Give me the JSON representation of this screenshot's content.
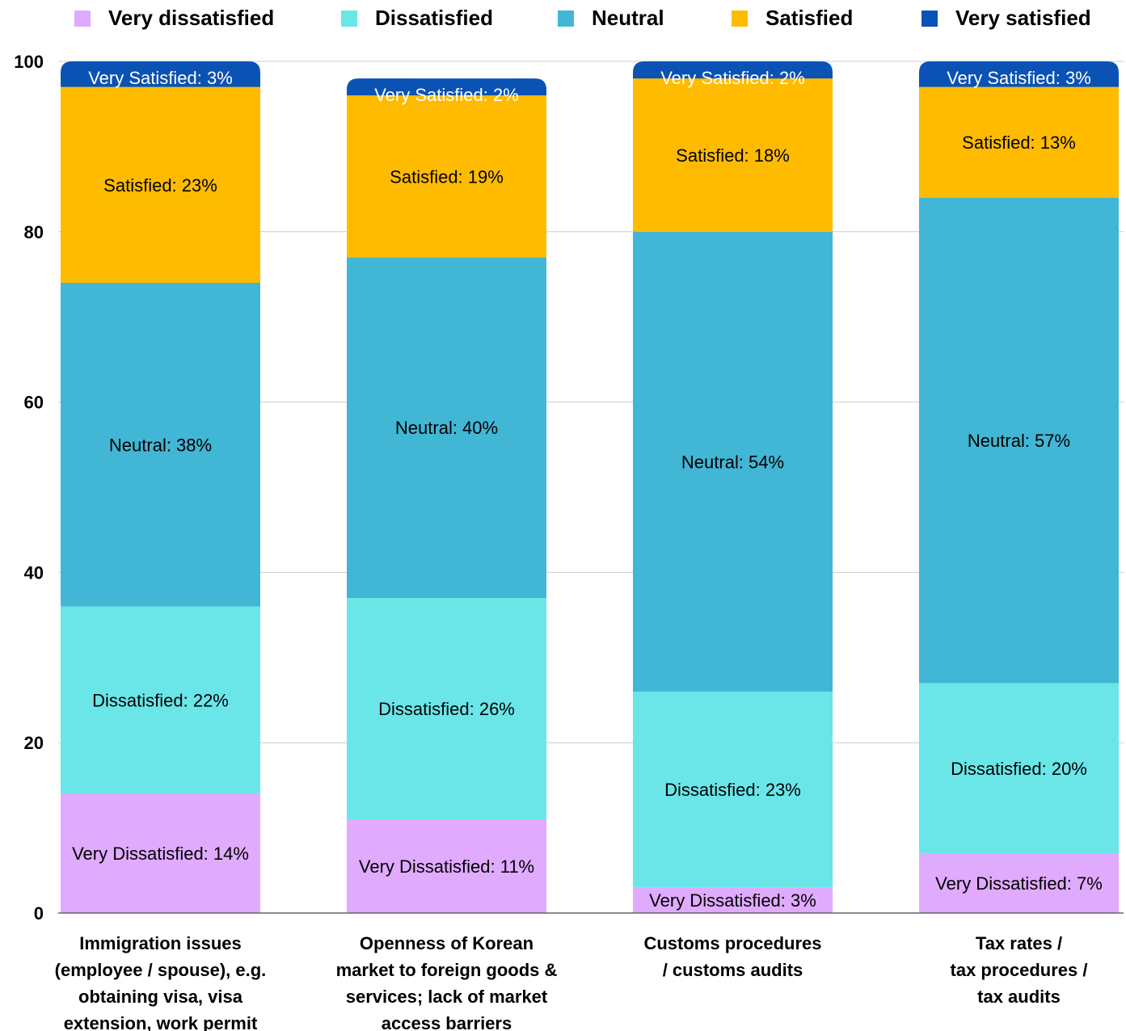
{
  "chart_data": {
    "type": "bar",
    "stacked": true,
    "categories": [
      [
        "Immigration issues",
        "(employee / spouse), e.g.",
        "obtaining visa, visa",
        "extension, work permit"
      ],
      [
        "Openness of Korean",
        "market to foreign goods &",
        "services; lack of market",
        "access barriers"
      ],
      [
        "Customs procedures",
        "/ customs audits"
      ],
      [
        "Tax rates /",
        "tax procedures /",
        "tax audits"
      ]
    ],
    "series": [
      {
        "name": "Very dissatisfied",
        "color": "#e0aaff",
        "values": [
          14,
          11,
          3,
          7
        ],
        "labels": [
          "Very Dissatisfied: 14%",
          "Very Dissatisfied: 11%",
          "Very Dissatisfied: 3%",
          "Very Dissatisfied: 7%"
        ]
      },
      {
        "name": "Dissatisfied",
        "color": "#6ae5e8",
        "values": [
          22,
          26,
          23,
          20
        ],
        "labels": [
          "Dissatisfied: 22%",
          "Dissatisfied: 26%",
          "Dissatisfied: 23%",
          "Dissatisfied: 20%"
        ]
      },
      {
        "name": "Neutral",
        "color": "#42b6d5",
        "values": [
          38,
          40,
          54,
          57
        ],
        "labels": [
          "Neutral: 38%",
          "Neutral: 40%",
          "Neutral: 54%",
          "Neutral: 57%"
        ]
      },
      {
        "name": "Satisfied",
        "color": "#ffbb00",
        "values": [
          23,
          19,
          18,
          13
        ],
        "labels": [
          "Satisfied: 23%",
          "Satisfied: 19%",
          "Satisfied: 18%",
          "Satisfied: 13%"
        ]
      },
      {
        "name": "Very satisfied",
        "color": "#0b52b5",
        "values": [
          3,
          2,
          2,
          3
        ],
        "labels": [
          "Very Satisfied: 3%",
          "Very Satisfied: 2%",
          "Very Satisfied: 2%",
          "Very Satisfied: 3%"
        ]
      }
    ],
    "y_ticks": [
      "0",
      "20",
      "40",
      "60",
      "80",
      "100"
    ],
    "ylim": [
      0,
      100
    ],
    "grid": true,
    "legend_position": "top"
  }
}
